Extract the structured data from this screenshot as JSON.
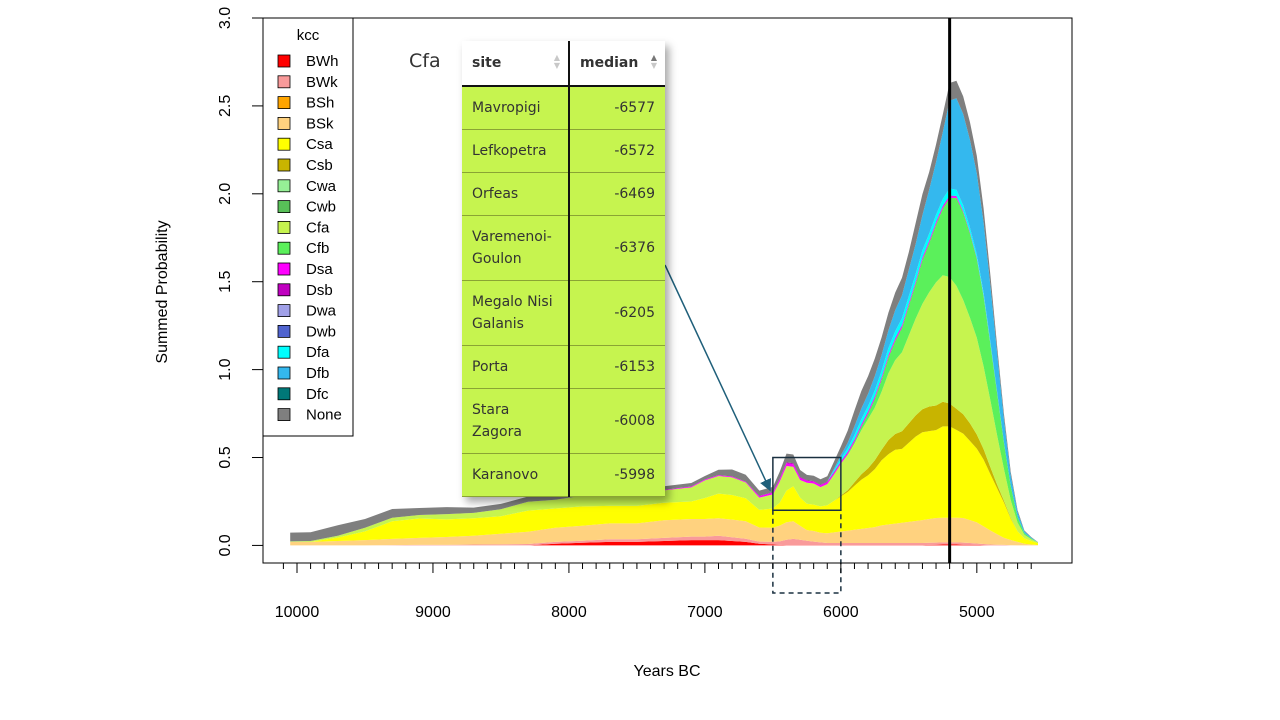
{
  "chart_data": {
    "type": "area",
    "stacked": true,
    "title": "",
    "xlabel": "Years BC",
    "ylabel": "Summed Probability",
    "xlim": [
      10250,
      4300
    ],
    "ylim": [
      -0.1,
      3.0
    ],
    "x_ticks": [
      10000,
      9000,
      8000,
      7000,
      6000,
      5000
    ],
    "y_ticks": [
      "0.0",
      "0.5",
      "1.0",
      "1.5",
      "2.0",
      "2.5",
      "3.0"
    ],
    "x": [
      10050,
      9900,
      9700,
      9500,
      9300,
      9100,
      8900,
      8700,
      8500,
      8300,
      8100,
      7900,
      7700,
      7500,
      7300,
      7100,
      7000,
      6900,
      6800,
      6700,
      6600,
      6500,
      6450,
      6400,
      6350,
      6300,
      6250,
      6200,
      6150,
      6100,
      6050,
      6000,
      5950,
      5900,
      5850,
      5800,
      5750,
      5700,
      5650,
      5600,
      5550,
      5500,
      5450,
      5400,
      5350,
      5300,
      5250,
      5200,
      5150,
      5100,
      5050,
      5000,
      4950,
      4900,
      4850,
      4800,
      4750,
      4700,
      4650,
      4600,
      4550
    ],
    "series": [
      {
        "name": "BWh",
        "color": "#ff0000",
        "values": [
          0,
          0,
          0,
          0,
          0,
          0,
          0,
          0,
          0,
          0,
          0.01,
          0.015,
          0.02,
          0.02,
          0.025,
          0.03,
          0.03,
          0.03,
          0.025,
          0.02,
          0.01,
          0.005,
          0.003,
          0.002,
          0.002,
          0.002,
          0.002,
          0.002,
          0.002,
          0.002,
          0.002,
          0.002,
          0.002,
          0.002,
          0.002,
          0.002,
          0.002,
          0.002,
          0.002,
          0.002,
          0.002,
          0.002,
          0.002,
          0.002,
          0.003,
          0.004,
          0.005,
          0.005,
          0.005,
          0.004,
          0.004,
          0.003,
          0.002,
          0.001,
          0.001,
          0.001,
          0,
          0,
          0,
          0,
          0
        ]
      },
      {
        "name": "BWk",
        "color": "#f99a9a",
        "values": [
          0,
          0,
          0,
          0,
          0.002,
          0.003,
          0.003,
          0.005,
          0.006,
          0.008,
          0.01,
          0.012,
          0.015,
          0.015,
          0.018,
          0.02,
          0.02,
          0.025,
          0.022,
          0.018,
          0.012,
          0.015,
          0.02,
          0.03,
          0.035,
          0.03,
          0.025,
          0.02,
          0.015,
          0.012,
          0.012,
          0.012,
          0.012,
          0.012,
          0.012,
          0.012,
          0.012,
          0.012,
          0.012,
          0.012,
          0.012,
          0.012,
          0.012,
          0.012,
          0.012,
          0.012,
          0.012,
          0.012,
          0.012,
          0.012,
          0.01,
          0.008,
          0.006,
          0.004,
          0.003,
          0.002,
          0.001,
          0,
          0,
          0,
          0
        ]
      },
      {
        "name": "BSh",
        "color": "#ffa500",
        "values": [
          0,
          0,
          0,
          0,
          0,
          0,
          0,
          0,
          0,
          0,
          0,
          0,
          0,
          0,
          0,
          0,
          0,
          0,
          0,
          0,
          0,
          0,
          0,
          0,
          0,
          0,
          0,
          0,
          0,
          0,
          0,
          0,
          0,
          0,
          0,
          0,
          0,
          0,
          0,
          0,
          0,
          0,
          0,
          0,
          0,
          0,
          0,
          0,
          0,
          0,
          0,
          0,
          0,
          0,
          0,
          0,
          0,
          0,
          0,
          0,
          0
        ]
      },
      {
        "name": "BSk",
        "color": "#ffd27f",
        "values": [
          0.02,
          0.02,
          0.025,
          0.03,
          0.035,
          0.04,
          0.045,
          0.05,
          0.06,
          0.07,
          0.08,
          0.085,
          0.09,
          0.09,
          0.1,
          0.1,
          0.1,
          0.1,
          0.1,
          0.1,
          0.08,
          0.08,
          0.09,
          0.1,
          0.1,
          0.08,
          0.06,
          0.06,
          0.055,
          0.055,
          0.06,
          0.065,
          0.07,
          0.075,
          0.08,
          0.085,
          0.09,
          0.1,
          0.105,
          0.11,
          0.115,
          0.12,
          0.125,
          0.13,
          0.135,
          0.14,
          0.14,
          0.14,
          0.14,
          0.14,
          0.13,
          0.12,
          0.1,
          0.08,
          0.06,
          0.04,
          0.03,
          0.02,
          0.01,
          0.005,
          0.002
        ]
      },
      {
        "name": "Csa",
        "color": "#ffff00",
        "values": [
          0,
          0,
          0.02,
          0.05,
          0.1,
          0.11,
          0.1,
          0.1,
          0.1,
          0.12,
          0.11,
          0.11,
          0.1,
          0.1,
          0.1,
          0.1,
          0.12,
          0.14,
          0.14,
          0.13,
          0.1,
          0.11,
          0.13,
          0.18,
          0.2,
          0.16,
          0.15,
          0.15,
          0.15,
          0.16,
          0.18,
          0.2,
          0.22,
          0.25,
          0.28,
          0.3,
          0.33,
          0.37,
          0.4,
          0.42,
          0.42,
          0.45,
          0.48,
          0.5,
          0.5,
          0.5,
          0.52,
          0.52,
          0.5,
          0.48,
          0.45,
          0.42,
          0.38,
          0.32,
          0.26,
          0.2,
          0.12,
          0.06,
          0.03,
          0.02,
          0.01
        ]
      },
      {
        "name": "Csb",
        "color": "#c8b400",
        "values": [
          0,
          0,
          0,
          0,
          0,
          0,
          0,
          0,
          0,
          0,
          0,
          0,
          0,
          0,
          0,
          0,
          0,
          0,
          0,
          0,
          0,
          0,
          0,
          0,
          0,
          0,
          0,
          0,
          0,
          0,
          0,
          0.005,
          0.01,
          0.02,
          0.03,
          0.04,
          0.05,
          0.06,
          0.08,
          0.09,
          0.1,
          0.11,
          0.12,
          0.13,
          0.14,
          0.14,
          0.14,
          0.13,
          0.12,
          0.11,
          0.1,
          0.08,
          0.06,
          0.04,
          0.02,
          0.01,
          0.005,
          0,
          0,
          0,
          0
        ]
      },
      {
        "name": "Cwa",
        "color": "#96f096",
        "values": [
          0,
          0,
          0,
          0,
          0,
          0,
          0,
          0,
          0,
          0,
          0,
          0,
          0,
          0,
          0,
          0,
          0,
          0,
          0,
          0,
          0,
          0,
          0,
          0,
          0,
          0,
          0,
          0,
          0,
          0,
          0,
          0,
          0,
          0,
          0,
          0,
          0,
          0,
          0,
          0,
          0,
          0,
          0,
          0,
          0,
          0,
          0,
          0,
          0,
          0,
          0,
          0,
          0,
          0,
          0,
          0,
          0,
          0,
          0,
          0,
          0
        ]
      },
      {
        "name": "Cwb",
        "color": "#58c058",
        "values": [
          0,
          0,
          0,
          0,
          0,
          0,
          0,
          0,
          0,
          0,
          0,
          0,
          0,
          0,
          0,
          0,
          0,
          0,
          0,
          0,
          0,
          0,
          0,
          0,
          0,
          0,
          0,
          0,
          0,
          0,
          0,
          0,
          0,
          0,
          0,
          0,
          0,
          0,
          0,
          0,
          0,
          0,
          0,
          0,
          0,
          0,
          0,
          0,
          0,
          0,
          0,
          0,
          0,
          0,
          0,
          0,
          0,
          0,
          0,
          0,
          0
        ]
      },
      {
        "name": "Cfa",
        "color": "#c6f44f",
        "values": [
          0.003,
          0.005,
          0.01,
          0.02,
          0.02,
          0.02,
          0.03,
          0.03,
          0.04,
          0.05,
          0.05,
          0.06,
          0.06,
          0.07,
          0.07,
          0.08,
          0.1,
          0.1,
          0.1,
          0.09,
          0.07,
          0.08,
          0.12,
          0.14,
          0.11,
          0.1,
          0.12,
          0.12,
          0.11,
          0.12,
          0.15,
          0.18,
          0.2,
          0.22,
          0.25,
          0.28,
          0.3,
          0.33,
          0.38,
          0.42,
          0.45,
          0.5,
          0.55,
          0.6,
          0.65,
          0.7,
          0.72,
          0.72,
          0.7,
          0.65,
          0.6,
          0.55,
          0.47,
          0.38,
          0.28,
          0.18,
          0.1,
          0.05,
          0.02,
          0.01,
          0.005
        ]
      },
      {
        "name": "Cfb",
        "color": "#5bf05b",
        "values": [
          0,
          0,
          0,
          0,
          0,
          0,
          0,
          0,
          0,
          0,
          0,
          0,
          0,
          0,
          0,
          0,
          0,
          0,
          0,
          0,
          0,
          0,
          0,
          0,
          0,
          0,
          0,
          0,
          0,
          0,
          0,
          0,
          0.005,
          0.01,
          0.02,
          0.03,
          0.05,
          0.07,
          0.09,
          0.11,
          0.14,
          0.17,
          0.2,
          0.25,
          0.28,
          0.33,
          0.38,
          0.45,
          0.5,
          0.5,
          0.48,
          0.45,
          0.4,
          0.32,
          0.24,
          0.15,
          0.08,
          0.03,
          0.01,
          0.005,
          0
        ]
      },
      {
        "name": "Dsa",
        "color": "#ff00ff",
        "values": [
          0,
          0,
          0,
          0,
          0,
          0,
          0,
          0,
          0,
          0,
          0,
          0,
          0.002,
          0.003,
          0.003,
          0.005,
          0.005,
          0.005,
          0.005,
          0.004,
          0.008,
          0.01,
          0.012,
          0.015,
          0.015,
          0.012,
          0.01,
          0.01,
          0.01,
          0.01,
          0.01,
          0.01,
          0.01,
          0.01,
          0.01,
          0.01,
          0.01,
          0.01,
          0.01,
          0.01,
          0.01,
          0.01,
          0.01,
          0.01,
          0.01,
          0.01,
          0.01,
          0.01,
          0.008,
          0.006,
          0.005,
          0.004,
          0.003,
          0.002,
          0.001,
          0,
          0,
          0,
          0,
          0,
          0
        ]
      },
      {
        "name": "Dsb",
        "color": "#c000c0",
        "values": [
          0,
          0,
          0,
          0,
          0,
          0,
          0,
          0,
          0,
          0,
          0,
          0,
          0,
          0,
          0,
          0,
          0,
          0,
          0,
          0,
          0.002,
          0.003,
          0.004,
          0.005,
          0.005,
          0.005,
          0.004,
          0.004,
          0.004,
          0.004,
          0.004,
          0.004,
          0.004,
          0.004,
          0.004,
          0.004,
          0.004,
          0.004,
          0.004,
          0.004,
          0.004,
          0.004,
          0.004,
          0.004,
          0.004,
          0.004,
          0.004,
          0.003,
          0.003,
          0.002,
          0.002,
          0.001,
          0.001,
          0,
          0,
          0,
          0,
          0,
          0,
          0,
          0
        ]
      },
      {
        "name": "Dwa",
        "color": "#a0a0e8",
        "values": [
          0,
          0,
          0,
          0,
          0,
          0,
          0,
          0,
          0,
          0,
          0,
          0,
          0,
          0,
          0,
          0,
          0,
          0,
          0,
          0,
          0,
          0,
          0,
          0,
          0,
          0,
          0,
          0,
          0,
          0,
          0,
          0,
          0,
          0,
          0,
          0,
          0,
          0,
          0,
          0,
          0,
          0,
          0,
          0,
          0,
          0,
          0,
          0,
          0,
          0,
          0,
          0,
          0,
          0,
          0,
          0,
          0,
          0,
          0,
          0,
          0
        ]
      },
      {
        "name": "Dwb",
        "color": "#5064d0",
        "values": [
          0,
          0,
          0,
          0,
          0,
          0,
          0,
          0,
          0,
          0,
          0,
          0,
          0,
          0,
          0,
          0,
          0,
          0,
          0,
          0,
          0,
          0,
          0,
          0,
          0,
          0,
          0,
          0,
          0,
          0,
          0,
          0,
          0,
          0,
          0,
          0,
          0,
          0,
          0,
          0,
          0,
          0,
          0,
          0,
          0,
          0,
          0,
          0,
          0,
          0,
          0,
          0,
          0,
          0,
          0,
          0,
          0,
          0,
          0,
          0,
          0
        ]
      },
      {
        "name": "Dfa",
        "color": "#00ffff",
        "values": [
          0,
          0,
          0,
          0,
          0,
          0,
          0,
          0,
          0,
          0,
          0,
          0,
          0,
          0,
          0,
          0,
          0,
          0,
          0,
          0,
          0,
          0,
          0,
          0,
          0,
          0,
          0,
          0,
          0,
          0,
          0.01,
          0.015,
          0.02,
          0.025,
          0.03,
          0.03,
          0.035,
          0.035,
          0.04,
          0.04,
          0.04,
          0.04,
          0.04,
          0.04,
          0.04,
          0.04,
          0.04,
          0.04,
          0.035,
          0.03,
          0.025,
          0.02,
          0.015,
          0.01,
          0.005,
          0.002,
          0,
          0,
          0,
          0,
          0
        ]
      },
      {
        "name": "Dfb",
        "color": "#34b8ee",
        "values": [
          0,
          0,
          0,
          0,
          0,
          0,
          0,
          0,
          0,
          0,
          0,
          0,
          0,
          0,
          0,
          0,
          0,
          0,
          0,
          0,
          0,
          0,
          0,
          0,
          0,
          0,
          0,
          0,
          0,
          0,
          0.01,
          0.02,
          0.03,
          0.05,
          0.06,
          0.07,
          0.08,
          0.09,
          0.1,
          0.12,
          0.13,
          0.15,
          0.17,
          0.2,
          0.25,
          0.3,
          0.38,
          0.5,
          0.52,
          0.52,
          0.5,
          0.46,
          0.4,
          0.32,
          0.22,
          0.13,
          0.06,
          0.03,
          0.01,
          0.005,
          0
        ]
      },
      {
        "name": "Dfc",
        "color": "#007878",
        "values": [
          0,
          0,
          0,
          0,
          0,
          0,
          0,
          0,
          0,
          0,
          0,
          0,
          0,
          0,
          0,
          0,
          0,
          0,
          0,
          0,
          0,
          0,
          0,
          0,
          0,
          0,
          0,
          0,
          0,
          0,
          0,
          0,
          0,
          0,
          0,
          0,
          0,
          0,
          0,
          0,
          0,
          0,
          0,
          0,
          0,
          0,
          0,
          0,
          0,
          0,
          0,
          0,
          0,
          0,
          0,
          0,
          0,
          0,
          0,
          0,
          0
        ]
      },
      {
        "name": "None",
        "color": "#7f7f7f",
        "values": [
          0.05,
          0.05,
          0.06,
          0.05,
          0.05,
          0.04,
          0.04,
          0.03,
          0.03,
          0.03,
          0.03,
          0.02,
          0.02,
          0.02,
          0.02,
          0.02,
          0.02,
          0.03,
          0.04,
          0.04,
          0.03,
          0.03,
          0.04,
          0.05,
          0.05,
          0.04,
          0.03,
          0.03,
          0.03,
          0.03,
          0.04,
          0.05,
          0.07,
          0.09,
          0.1,
          0.1,
          0.1,
          0.1,
          0.1,
          0.1,
          0.1,
          0.1,
          0.12,
          0.12,
          0.1,
          0.1,
          0.1,
          0.1,
          0.1,
          0.1,
          0.1,
          0.1,
          0.08,
          0.06,
          0.04,
          0.03,
          0.02,
          0.01,
          0.005,
          0.003,
          0.002
        ]
      }
    ],
    "vline": 5200,
    "legend": {
      "title": "kcc",
      "placement": "top-left"
    },
    "zoom_box": {
      "x_from": 6500,
      "x_to": 6000,
      "y_from": 0.2,
      "y_to": 0.5
    }
  },
  "inset": {
    "label": "Cfa",
    "columns": [
      {
        "label": "site"
      },
      {
        "label": "median"
      }
    ],
    "rows": [
      {
        "site": "Mavropigi",
        "median": "-6577"
      },
      {
        "site": "Lefkopetra",
        "median": "-6572"
      },
      {
        "site": "Orfeas",
        "median": "-6469"
      },
      {
        "site": "Varemenoi-\nGoulon",
        "median": "-6376"
      },
      {
        "site": "Megalo Nisi\nGalanis",
        "median": "-6205"
      },
      {
        "site": "Porta",
        "median": "-6153"
      },
      {
        "site": "Stara\nZagora",
        "median": "-6008"
      },
      {
        "site": "Karanovo",
        "median": "-5998"
      }
    ],
    "colors": {
      "row_fill": "#c6f44f",
      "arrow": "#1f5f7a"
    }
  }
}
